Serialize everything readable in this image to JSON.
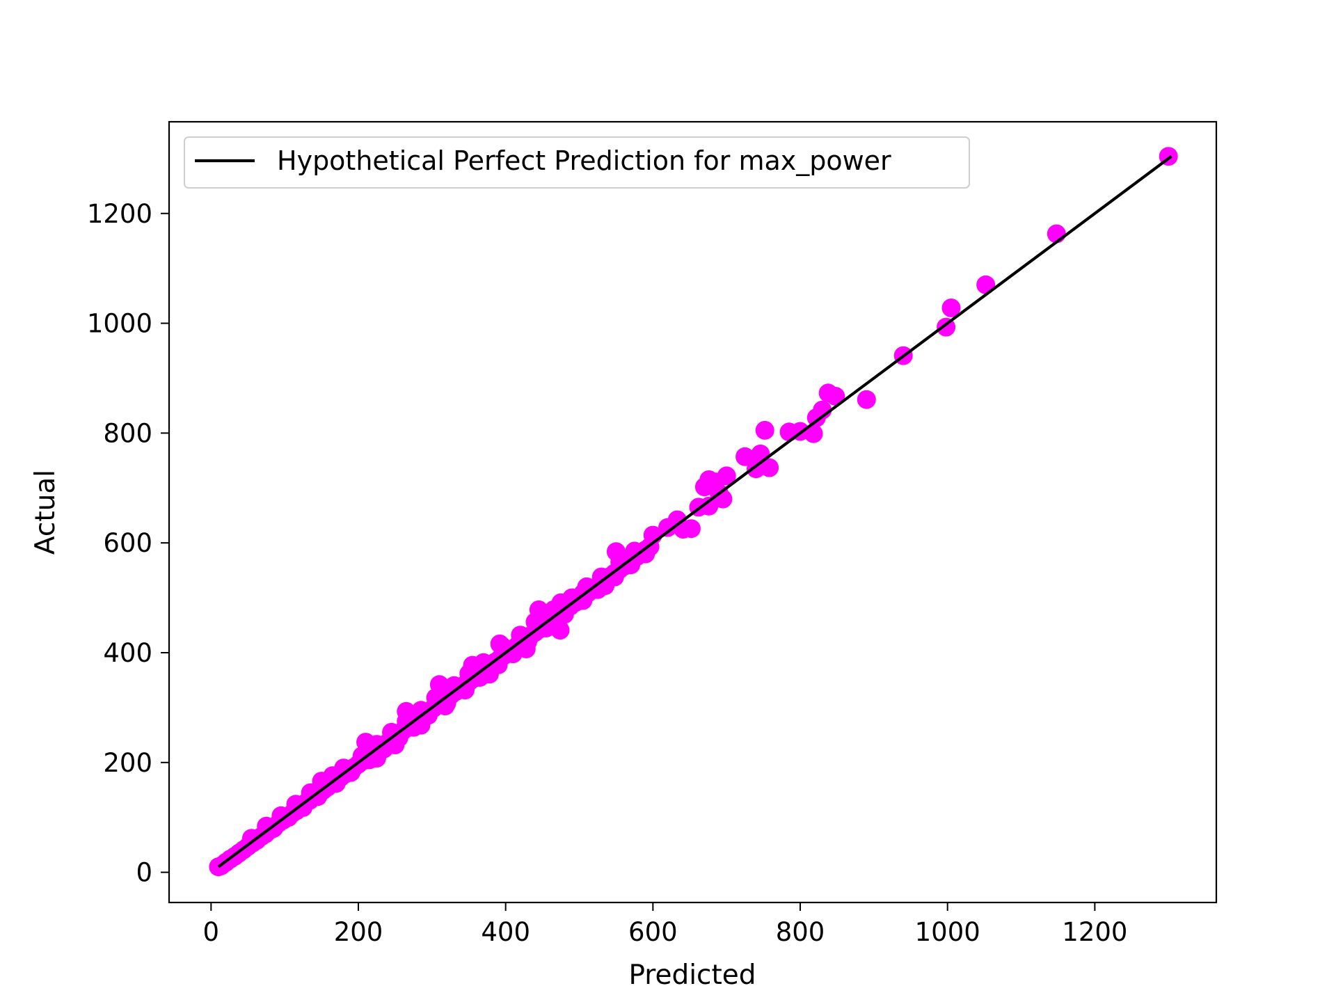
{
  "chart_data": {
    "type": "scatter",
    "xlabel": "Predicted",
    "ylabel": "Actual",
    "xlim": [
      -57,
      1365
    ],
    "ylim": [
      -55,
      1367
    ],
    "x_ticks": [
      0,
      200,
      400,
      600,
      800,
      1000,
      1200
    ],
    "y_ticks": [
      0,
      200,
      400,
      600,
      800,
      1000,
      1200
    ],
    "grid": false,
    "legend": {
      "position": "upper-left",
      "entries": [
        "Hypothetical Perfect Prediction for max_power"
      ]
    },
    "colors": {
      "points": "#ff00ff",
      "line": "#000000"
    },
    "reference_line": {
      "name": "Hypothetical Perfect Prediction for max_power",
      "x": [
        10,
        1304
      ],
      "y": [
        10,
        1304
      ]
    },
    "series": [
      {
        "points": [
          [
            10,
            10
          ],
          [
            14,
            12
          ],
          [
            20,
            18
          ],
          [
            26,
            24
          ],
          [
            32,
            29
          ],
          [
            38,
            35
          ],
          [
            44,
            41
          ],
          [
            50,
            47
          ],
          [
            56,
            53
          ],
          [
            62,
            58
          ],
          [
            68,
            65
          ],
          [
            74,
            70
          ],
          [
            80,
            77
          ],
          [
            86,
            82
          ],
          [
            92,
            90
          ],
          [
            98,
            95
          ],
          [
            104,
            101
          ],
          [
            110,
            107
          ],
          [
            116,
            112
          ],
          [
            122,
            118
          ],
          [
            128,
            126
          ],
          [
            134,
            131
          ],
          [
            140,
            137
          ],
          [
            146,
            143
          ],
          [
            152,
            149
          ],
          [
            158,
            155
          ],
          [
            164,
            161
          ],
          [
            170,
            167
          ],
          [
            176,
            173
          ],
          [
            182,
            179
          ],
          [
            188,
            185
          ],
          [
            194,
            191
          ],
          [
            200,
            197
          ],
          [
            206,
            203
          ],
          [
            212,
            209
          ],
          [
            218,
            215
          ],
          [
            224,
            221
          ],
          [
            230,
            227
          ],
          [
            236,
            233
          ],
          [
            242,
            239
          ],
          [
            248,
            245
          ],
          [
            254,
            251
          ],
          [
            260,
            257
          ],
          [
            266,
            263
          ],
          [
            272,
            269
          ],
          [
            278,
            275
          ],
          [
            284,
            281
          ],
          [
            290,
            287
          ],
          [
            296,
            293
          ],
          [
            302,
            299
          ],
          [
            308,
            305
          ],
          [
            314,
            311
          ],
          [
            320,
            317
          ],
          [
            326,
            323
          ],
          [
            332,
            329
          ],
          [
            338,
            335
          ],
          [
            344,
            341
          ],
          [
            350,
            347
          ],
          [
            356,
            353
          ],
          [
            362,
            359
          ],
          [
            368,
            365
          ],
          [
            374,
            371
          ],
          [
            380,
            377
          ],
          [
            386,
            383
          ],
          [
            392,
            389
          ],
          [
            398,
            395
          ],
          [
            404,
            401
          ],
          [
            410,
            407
          ],
          [
            416,
            413
          ],
          [
            422,
            419
          ],
          [
            428,
            425
          ],
          [
            434,
            431
          ],
          [
            440,
            437
          ],
          [
            446,
            443
          ],
          [
            452,
            449
          ],
          [
            458,
            455
          ],
          [
            464,
            461
          ],
          [
            470,
            467
          ],
          [
            476,
            473
          ],
          [
            482,
            479
          ],
          [
            488,
            485
          ],
          [
            494,
            491
          ],
          [
            500,
            497
          ],
          [
            506,
            503
          ],
          [
            512,
            509
          ],
          [
            518,
            515
          ],
          [
            524,
            521
          ],
          [
            530,
            527
          ],
          [
            536,
            533
          ],
          [
            542,
            539
          ],
          [
            548,
            545
          ],
          [
            554,
            551
          ],
          [
            560,
            557
          ],
          [
            566,
            563
          ],
          [
            572,
            569
          ],
          [
            578,
            575
          ],
          [
            584,
            581
          ],
          [
            590,
            587
          ],
          [
            596,
            593
          ],
          [
            55,
            62
          ],
          [
            75,
            84
          ],
          [
            95,
            103
          ],
          [
            115,
            124
          ],
          [
            135,
            145
          ],
          [
            150,
            166
          ],
          [
            165,
            176
          ],
          [
            180,
            190
          ],
          [
            205,
            212
          ],
          [
            225,
            233
          ],
          [
            245,
            255
          ],
          [
            265,
            275
          ],
          [
            285,
            295
          ],
          [
            305,
            318
          ],
          [
            330,
            340
          ],
          [
            350,
            362
          ],
          [
            370,
            382
          ],
          [
            395,
            412
          ],
          [
            420,
            432
          ],
          [
            440,
            456
          ],
          [
            465,
            478
          ],
          [
            490,
            500
          ],
          [
            510,
            520
          ],
          [
            530,
            538
          ],
          [
            555,
            565
          ],
          [
            575,
            585
          ],
          [
            85,
            80
          ],
          [
            105,
            100
          ],
          [
            125,
            118
          ],
          [
            145,
            138
          ],
          [
            170,
            162
          ],
          [
            190,
            182
          ],
          [
            215,
            205
          ],
          [
            235,
            225
          ],
          [
            255,
            245
          ],
          [
            275,
            264
          ],
          [
            295,
            286
          ],
          [
            320,
            308
          ],
          [
            345,
            332
          ],
          [
            365,
            355
          ],
          [
            390,
            378
          ],
          [
            410,
            398
          ],
          [
            430,
            420
          ],
          [
            455,
            445
          ],
          [
            480,
            470
          ],
          [
            505,
            495
          ],
          [
            525,
            515
          ],
          [
            548,
            538
          ],
          [
            570,
            560
          ],
          [
            590,
            580
          ],
          [
            210,
            237
          ],
          [
            265,
            293
          ],
          [
            310,
            342
          ],
          [
            355,
            377
          ],
          [
            392,
            416
          ],
          [
            445,
            478
          ],
          [
            475,
            491
          ],
          [
            505,
            508
          ],
          [
            550,
            584
          ],
          [
            600,
            614
          ],
          [
            225,
            208
          ],
          [
            250,
            232
          ],
          [
            285,
            268
          ],
          [
            318,
            303
          ],
          [
            378,
            361
          ],
          [
            428,
            407
          ],
          [
            474,
            441
          ],
          [
            535,
            522
          ],
          [
            578,
            577
          ],
          [
            620,
            628
          ],
          [
            633,
            642
          ],
          [
            641,
            625
          ],
          [
            652,
            626
          ],
          [
            662,
            665
          ],
          [
            670,
            702
          ],
          [
            676,
            715
          ],
          [
            685,
            711
          ],
          [
            690,
            690
          ],
          [
            695,
            680
          ],
          [
            700,
            722
          ],
          [
            676,
            667
          ],
          [
            725,
            757
          ],
          [
            740,
            735
          ],
          [
            746,
            762
          ],
          [
            752,
            805
          ],
          [
            758,
            737
          ],
          [
            785,
            802
          ],
          [
            800,
            803
          ],
          [
            818,
            799
          ],
          [
            822,
            828
          ],
          [
            830,
            842
          ],
          [
            838,
            873
          ],
          [
            848,
            867
          ],
          [
            890,
            861
          ],
          [
            940,
            941
          ],
          [
            998,
            993
          ],
          [
            1005,
            1028
          ],
          [
            1052,
            1070
          ],
          [
            1148,
            1163
          ],
          [
            1300,
            1304
          ]
        ]
      }
    ]
  }
}
